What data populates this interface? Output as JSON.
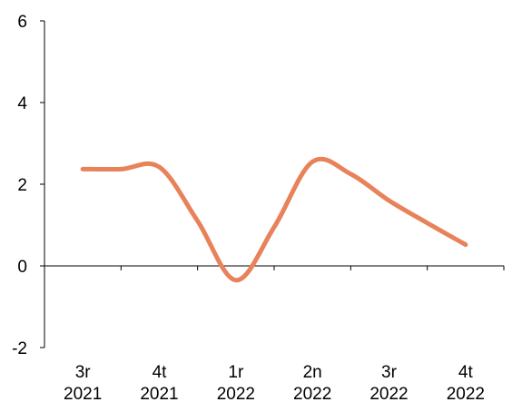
{
  "chart_data": {
    "type": "line",
    "title": "",
    "xlabel": "",
    "ylabel": "",
    "categories": [
      [
        "3r",
        "2021"
      ],
      [
        "4t",
        "2021"
      ],
      [
        "1r",
        "2022"
      ],
      [
        "2n",
        "2022"
      ],
      [
        "3r",
        "2022"
      ],
      [
        "4t",
        "2022"
      ]
    ],
    "x": [
      0,
      1,
      2,
      3,
      4,
      5
    ],
    "ylim": [
      -2,
      6
    ],
    "yticks": [
      "6",
      "4",
      "2",
      "0",
      "-2"
    ],
    "ytick_values": [
      6,
      4,
      2,
      0,
      -2
    ],
    "series": [
      {
        "color": "#E8825A",
        "points": [
          [
            0,
            2.37
          ],
          [
            0.5,
            2.37
          ],
          [
            1,
            2.42
          ],
          [
            1.5,
            1.1
          ],
          [
            2,
            -0.35
          ],
          [
            2.5,
            0.95
          ],
          [
            3,
            2.55
          ],
          [
            3.5,
            2.25
          ],
          [
            4,
            1.6
          ],
          [
            4.5,
            1.05
          ],
          [
            5,
            0.52
          ]
        ]
      }
    ],
    "grid": false,
    "legend": "none"
  }
}
